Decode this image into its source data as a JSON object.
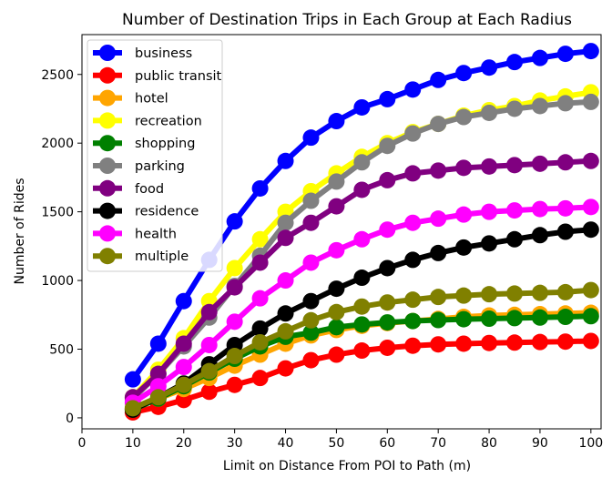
{
  "chart_data": {
    "type": "line",
    "title": "Number of Destination Trips in Each Group at Each Radius",
    "xlabel": "Limit on Distance From POI to Path (m)",
    "ylabel": "Number of Rides",
    "xlim": [
      0,
      102
    ],
    "ylim": [
      -80,
      2790
    ],
    "x_ticks": [
      0,
      10,
      20,
      30,
      40,
      50,
      60,
      70,
      80,
      90,
      100
    ],
    "y_ticks": [
      0,
      500,
      1000,
      1500,
      2000,
      2500
    ],
    "grid": false,
    "legend_position": "top-left",
    "x": [
      10,
      15,
      20,
      25,
      30,
      35,
      40,
      45,
      50,
      55,
      60,
      65,
      70,
      75,
      80,
      85,
      90,
      95,
      100
    ],
    "series": [
      {
        "name": "business",
        "color": "#0000ff",
        "values": [
          280,
          540,
          850,
          1150,
          1430,
          1670,
          1870,
          2040,
          2160,
          2260,
          2320,
          2390,
          2460,
          2510,
          2550,
          2590,
          2620,
          2650,
          2670
        ]
      },
      {
        "name": "public transit",
        "color": "#ff0000",
        "values": [
          40,
          80,
          130,
          190,
          240,
          290,
          360,
          420,
          460,
          490,
          510,
          525,
          535,
          540,
          545,
          548,
          552,
          555,
          560
        ]
      },
      {
        "name": "hotel",
        "color": "#ffa500",
        "values": [
          70,
          140,
          210,
          290,
          380,
          460,
          540,
          600,
          640,
          670,
          690,
          705,
          720,
          735,
          745,
          750,
          755,
          760,
          765
        ]
      },
      {
        "name": "recreation",
        "color": "#ffff00",
        "values": [
          150,
          350,
          580,
          850,
          1090,
          1300,
          1500,
          1650,
          1780,
          1900,
          2000,
          2080,
          2140,
          2200,
          2240,
          2270,
          2310,
          2340,
          2370
        ]
      },
      {
        "name": "shopping",
        "color": "#008000",
        "values": [
          60,
          140,
          230,
          330,
          430,
          520,
          590,
          620,
          660,
          680,
          695,
          705,
          712,
          718,
          722,
          726,
          730,
          735,
          740
        ]
      },
      {
        "name": "parking",
        "color": "#808080",
        "values": [
          140,
          320,
          520,
          730,
          960,
          1180,
          1420,
          1580,
          1720,
          1860,
          1980,
          2070,
          2140,
          2190,
          2220,
          2250,
          2270,
          2290,
          2300
        ]
      },
      {
        "name": "food",
        "color": "#800080",
        "values": [
          150,
          320,
          540,
          770,
          950,
          1130,
          1310,
          1420,
          1540,
          1660,
          1730,
          1780,
          1800,
          1820,
          1830,
          1840,
          1850,
          1860,
          1870
        ]
      },
      {
        "name": "residence",
        "color": "#000000",
        "values": [
          60,
          150,
          250,
          390,
          530,
          650,
          760,
          850,
          940,
          1020,
          1090,
          1150,
          1200,
          1240,
          1270,
          1300,
          1330,
          1355,
          1370
        ]
      },
      {
        "name": "health",
        "color": "#ff00ff",
        "values": [
          110,
          230,
          370,
          530,
          700,
          870,
          1000,
          1130,
          1220,
          1300,
          1370,
          1420,
          1450,
          1480,
          1500,
          1510,
          1520,
          1525,
          1535
        ]
      },
      {
        "name": "multiple",
        "color": "#808000",
        "values": [
          70,
          150,
          240,
          340,
          450,
          550,
          630,
          710,
          770,
          810,
          840,
          860,
          880,
          890,
          900,
          905,
          910,
          915,
          930
        ]
      }
    ]
  }
}
